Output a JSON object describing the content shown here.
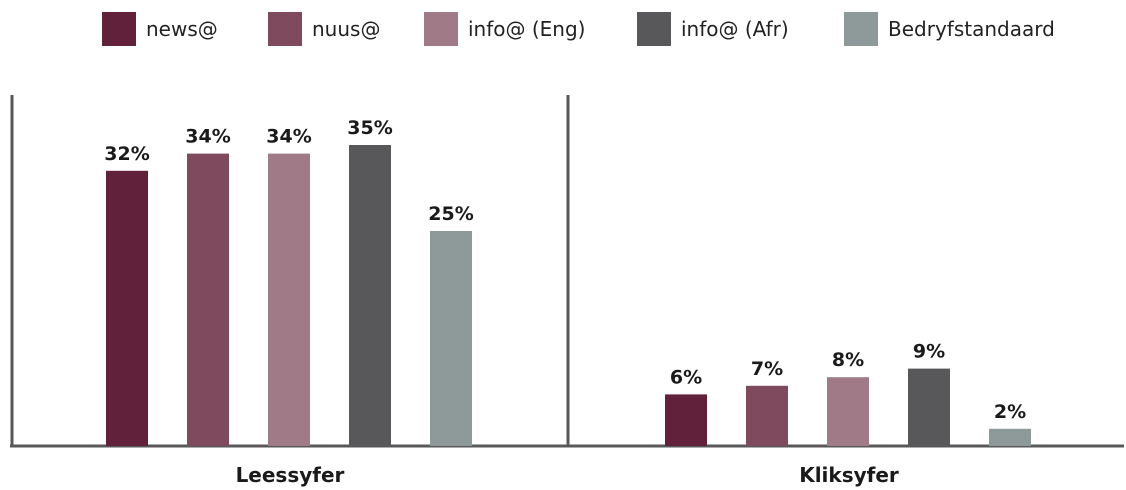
{
  "chart_data": {
    "type": "bar",
    "categories": [
      "Leessyfer",
      "Kliksyfer"
    ],
    "series": [
      {
        "name": "news@",
        "values": [
          32,
          6
        ],
        "labels": [
          "32%",
          "6%"
        ],
        "color": "#62213A"
      },
      {
        "name": "nuus@",
        "values": [
          34,
          7
        ],
        "labels": [
          "34%",
          "7%"
        ],
        "color": "#7F4A5E"
      },
      {
        "name": "info@ (Eng)",
        "values": [
          34,
          8
        ],
        "labels": [
          "34%",
          "8%"
        ],
        "color": "#A07A86"
      },
      {
        "name": "info@ (Afr)",
        "values": [
          35,
          9
        ],
        "labels": [
          "35%",
          "9%"
        ],
        "color": "#58585A"
      },
      {
        "name": "Bedryfstandaard",
        "values": [
          25,
          2
        ],
        "labels": [
          "25%",
          "2%"
        ],
        "color": "#8E999A"
      }
    ],
    "title": "",
    "xlabel": "",
    "ylabel": "",
    "ylim": [
      0,
      40
    ],
    "grid": false,
    "legend_position": "top"
  }
}
